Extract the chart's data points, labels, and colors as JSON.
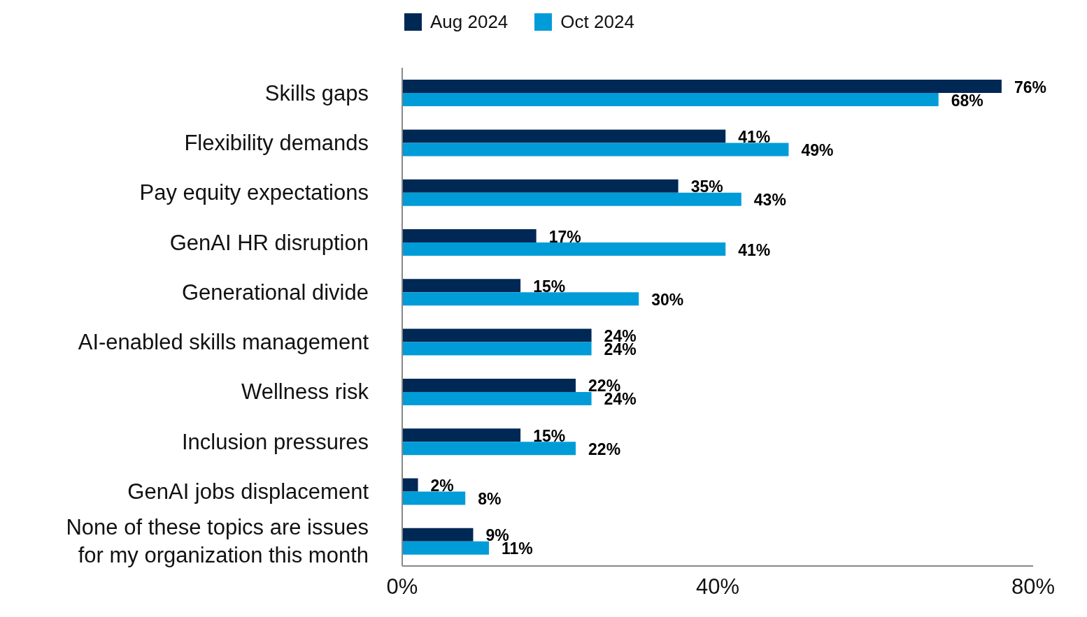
{
  "chart_data": {
    "type": "bar",
    "orientation": "horizontal",
    "categories": [
      "Skills gaps",
      "Flexibility demands",
      "Pay equity expectations",
      "GenAI HR disruption",
      "Generational divide",
      "AI-enabled skills management",
      "Wellness risk",
      "Inclusion pressures",
      "GenAI jobs displacement",
      "None of these topics are issues for my organization this month"
    ],
    "series": [
      {
        "name": "Aug 2024",
        "color": "#002855",
        "values": [
          76,
          41,
          35,
          17,
          15,
          24,
          22,
          15,
          2,
          9
        ],
        "value_labels": [
          "76%",
          "41%",
          "35%",
          "17%",
          "15%",
          "24%",
          "22%",
          "15%",
          "2%",
          "9%"
        ]
      },
      {
        "name": "Oct 2024",
        "color": "#009cd8",
        "values": [
          68,
          49,
          43,
          41,
          30,
          24,
          24,
          22,
          8,
          11
        ],
        "value_labels": [
          "68%",
          "49%",
          "43%",
          "41%",
          "30%",
          "24%",
          "24%",
          "22%",
          "8%",
          "11%"
        ]
      }
    ],
    "xlim": [
      0,
      80
    ],
    "xticks": [
      {
        "value": 0,
        "label": "0%"
      },
      {
        "value": 40,
        "label": "40%"
      },
      {
        "value": 80,
        "label": "80%"
      }
    ],
    "grid": false,
    "legend": "top"
  }
}
